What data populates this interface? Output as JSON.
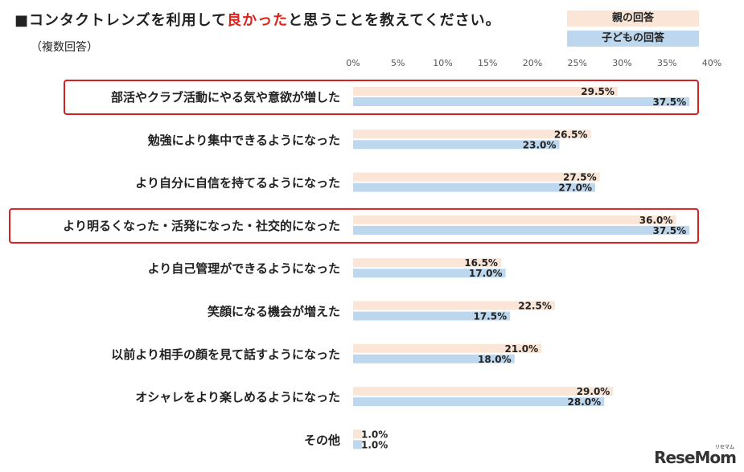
{
  "title": {
    "prefix": "■コンタクトレンズを利用して",
    "highlight": "良かった",
    "suffix": "と思うことを教えてください。"
  },
  "subtitle": "（複数回答）",
  "logo": {
    "text": "ReseMom",
    "kana": "リセマム"
  },
  "colors": {
    "parent": "#fbe5d6",
    "child": "#bdd7ee",
    "highlight_border": "#d81e1e",
    "title_highlight": "#e0211c"
  },
  "chart_data": {
    "type": "bar",
    "orientation": "horizontal",
    "categories": [
      "部活やクラブ活動にやる気や意欲が増した",
      "勉強により集中できるようになった",
      "より自分に自信を持てるようになった",
      "より明るくなった・活発になった・社交的になった",
      "より自己管理ができるようになった",
      "笑顔になる機会が増えた",
      "以前より相手の顔を見て話すようになった",
      "オシャレをより楽しめるようになった",
      "その他"
    ],
    "series": [
      {
        "name": "親の回答",
        "color": "#fbe5d6",
        "values": [
          29.5,
          26.5,
          27.5,
          36.0,
          16.5,
          22.5,
          21.0,
          29.0,
          1.0
        ]
      },
      {
        "name": "子どもの回答",
        "color": "#bdd7ee",
        "values": [
          37.5,
          23.0,
          27.0,
          37.5,
          17.0,
          17.5,
          18.0,
          28.0,
          1.0
        ]
      }
    ],
    "value_labels": [
      [
        "29.5%",
        "26.5%",
        "27.5%",
        "36.0%",
        "16.5%",
        "22.5%",
        "21.0%",
        "29.0%",
        "1.0%"
      ],
      [
        "37.5%",
        "23.0%",
        "27.0%",
        "37.5%",
        "17.0%",
        "17.5%",
        "18.0%",
        "28.0%",
        "1.0%"
      ]
    ],
    "xlim": [
      0,
      40
    ],
    "xticks": [
      "0%",
      "5%",
      "10%",
      "15%",
      "20%",
      "25%",
      "30%",
      "35%",
      "40%"
    ],
    "highlighted_categories": [
      0,
      3
    ],
    "legend_position": "top-right",
    "grid": false
  }
}
